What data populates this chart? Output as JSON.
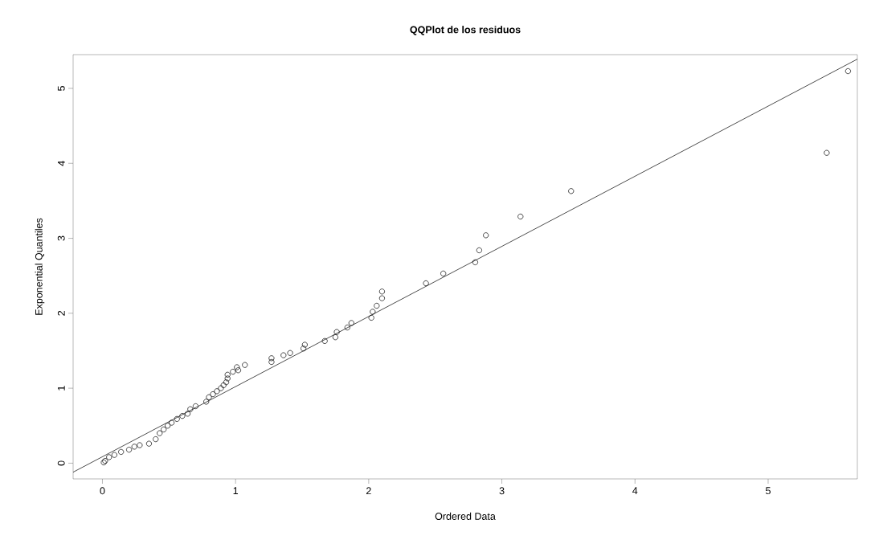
{
  "chart_data": {
    "type": "scatter",
    "title": "QQPlot de los residuos",
    "xlabel": "Ordered Data",
    "ylabel": "Exponential Quantiles",
    "xlim": [
      -0.22,
      5.67
    ],
    "ylim": [
      -0.21,
      5.45
    ],
    "xticks": [
      0,
      1,
      2,
      3,
      4,
      5
    ],
    "yticks": [
      0,
      1,
      2,
      3,
      4,
      5
    ],
    "marker": "circle",
    "series": [
      {
        "color": "#000000",
        "x": [
          0.01,
          0.02,
          0.05,
          0.09,
          0.14,
          0.2,
          0.24,
          0.28,
          0.35,
          0.4,
          0.43,
          0.46,
          0.49,
          0.52,
          0.56,
          0.6,
          0.64,
          0.66,
          0.7,
          0.78,
          0.8,
          0.83,
          0.86,
          0.89,
          0.91,
          0.93,
          0.94,
          0.94,
          0.98,
          1.02,
          1.01,
          1.07,
          1.27,
          1.27,
          1.36,
          1.41,
          1.51,
          1.52,
          1.67,
          1.75,
          1.76,
          1.84,
          1.87,
          2.02,
          2.03,
          2.06,
          2.1,
          2.1,
          2.43,
          2.56,
          2.8,
          2.83,
          2.88,
          3.14,
          3.52,
          5.44,
          5.6
        ],
        "values": [
          0.01,
          0.03,
          0.08,
          0.11,
          0.15,
          0.18,
          0.22,
          0.24,
          0.26,
          0.32,
          0.4,
          0.45,
          0.5,
          0.54,
          0.59,
          0.63,
          0.66,
          0.72,
          0.76,
          0.82,
          0.88,
          0.92,
          0.96,
          1.0,
          1.04,
          1.08,
          1.13,
          1.18,
          1.22,
          1.24,
          1.28,
          1.31,
          1.35,
          1.4,
          1.44,
          1.47,
          1.53,
          1.58,
          1.63,
          1.68,
          1.75,
          1.81,
          1.87,
          1.94,
          2.02,
          2.1,
          2.2,
          2.29,
          2.4,
          2.53,
          2.68,
          2.84,
          3.04,
          3.29,
          3.63,
          4.14,
          5.23
        ]
      },
      {
        "type": "line",
        "color": "#000000",
        "marker": "none",
        "line_style": "solid",
        "x": [
          -0.22,
          5.67
        ],
        "values": [
          -0.12,
          5.39
        ]
      }
    ]
  }
}
